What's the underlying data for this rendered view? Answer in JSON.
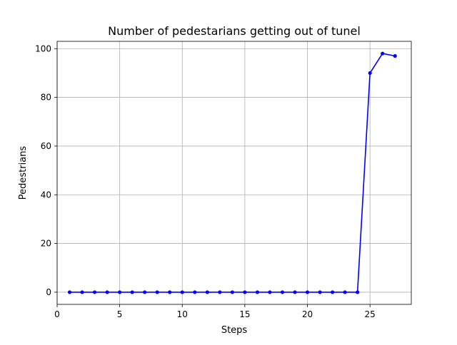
{
  "chart_data": {
    "type": "line",
    "title": "Number of pedestarians getting out of tunel",
    "xlabel": "Steps",
    "ylabel": "Pedestrians",
    "xlim": [
      0,
      28.3
    ],
    "ylim": [
      -5,
      103
    ],
    "xticks": [
      0,
      5,
      10,
      15,
      20,
      25
    ],
    "yticks": [
      0,
      20,
      40,
      60,
      80,
      100
    ],
    "grid": true,
    "legend": "none",
    "series": [
      {
        "color": "#0000ff",
        "marker": "circle",
        "x": [
          1,
          2,
          3,
          4,
          5,
          6,
          7,
          8,
          9,
          10,
          11,
          12,
          13,
          14,
          15,
          16,
          17,
          18,
          19,
          20,
          21,
          22,
          23,
          24,
          25,
          26,
          27
        ],
        "y": [
          0,
          0,
          0,
          0,
          0,
          0,
          0,
          0,
          0,
          0,
          0,
          0,
          0,
          0,
          0,
          0,
          0,
          0,
          0,
          0,
          0,
          0,
          0,
          0,
          90,
          98,
          97
        ]
      }
    ]
  }
}
